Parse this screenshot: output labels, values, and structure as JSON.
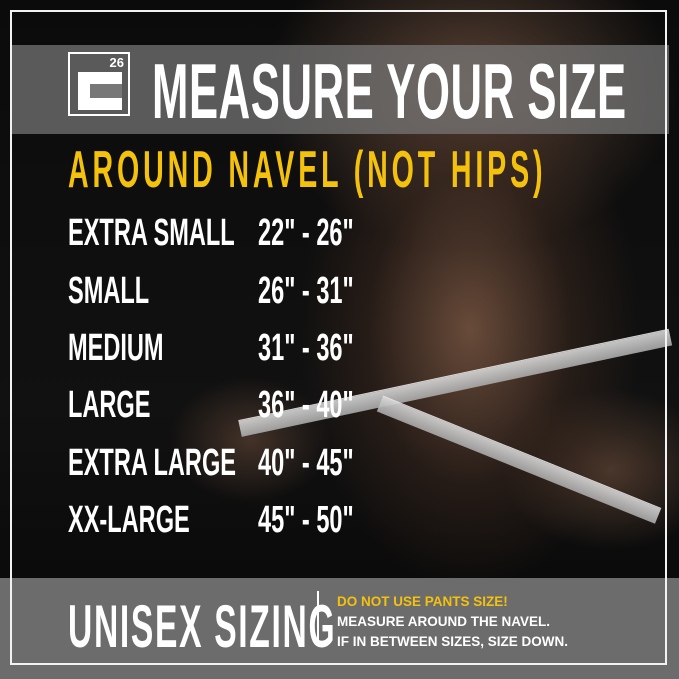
{
  "logo": {
    "text": "26"
  },
  "header": {
    "title": "MEASURE YOUR SIZE"
  },
  "subtitle": "AROUND NAVEL (NOT HIPS)",
  "sizes": [
    {
      "label": "EXTRA SMALL",
      "range": "22\" - 26\""
    },
    {
      "label": "SMALL",
      "range": "26\" - 31\""
    },
    {
      "label": "MEDIUM",
      "range": "31\" - 36\""
    },
    {
      "label": "LARGE",
      "range": "36\" - 40\""
    },
    {
      "label": "EXTRA LARGE",
      "range": "40\" - 45\""
    },
    {
      "label": "XX-LARGE",
      "range": "45\" - 50\""
    }
  ],
  "footer": {
    "title": "UNISEX SIZING",
    "warning": "DO NOT USE PANTS SIZE!",
    "line1": "MEASURE AROUND THE NAVEL.",
    "line2": "IF IN BETWEEN SIZES, SIZE DOWN."
  },
  "colors": {
    "accent": "#f4c20d",
    "text": "#ffffff",
    "band": "#6c6c6c"
  }
}
